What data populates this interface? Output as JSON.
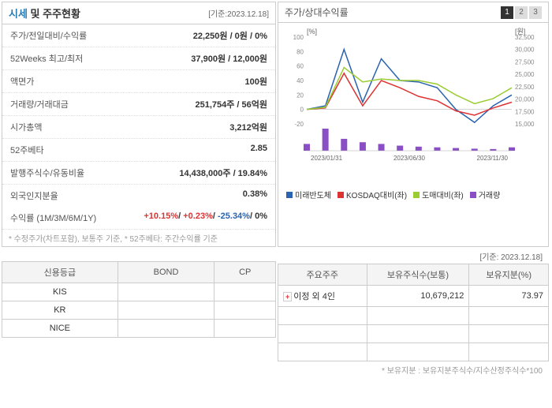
{
  "header": {
    "title_accent": "시세",
    "title_rest": " 및 주주현황",
    "date": "[기준:2023.12.18]"
  },
  "stock_info": {
    "rows": [
      {
        "label": "주가/전일대비/수익률",
        "value": "22,250원 / 0원 / 0%",
        "value_classes": []
      },
      {
        "label": "52Weeks 최고/최저",
        "value": "37,900원 / 12,000원"
      },
      {
        "label": "액면가",
        "value": "100원"
      },
      {
        "label": "거래량/거래대금",
        "value": "251,754주 / 56억원"
      },
      {
        "label": "시가총액",
        "value": "3,212억원"
      },
      {
        "label": "52주베타",
        "value": "2.85"
      },
      {
        "label": "발행주식수/유동비율",
        "value": "14,438,000주 / 19.84%"
      },
      {
        "label": "외국인지분율",
        "value": "0.38%"
      }
    ],
    "returns_label": "수익률 (1M/3M/6M/1Y)",
    "returns_parts": [
      {
        "text": "+10.15%",
        "class": "red"
      },
      {
        "text": "+0.23%",
        "class": "red"
      },
      {
        "text": "-25.34%",
        "class": "blue"
      },
      {
        "text": "0%",
        "class": ""
      }
    ],
    "footnote": "* 수정주가(차트포함), 보통주 기준, * 52주베타: 주간수익률 기준"
  },
  "chart_panel": {
    "title": "주가/상대수익률",
    "tabs": [
      "1",
      "2",
      "3"
    ],
    "active_tab": 0,
    "y_left_label": "[%]",
    "y_right_label": "[원]",
    "y_left_ticks": [
      -20,
      0,
      20,
      40,
      60,
      80,
      100
    ],
    "y_right_ticks": [
      15000,
      17500,
      20000,
      22500,
      25000,
      27500,
      30000,
      32500
    ],
    "x_labels": [
      "2023/01/31",
      "2023/06/30",
      "2023/11/30"
    ],
    "series": [
      {
        "name": "미래반도체",
        "color": "#2a63b0",
        "values": [
          0,
          5,
          83,
          10,
          70,
          40,
          38,
          30,
          0,
          -18,
          5,
          20
        ]
      },
      {
        "name": "KOSDAQ대비(좌)",
        "color": "#d33",
        "values": [
          0,
          2,
          50,
          5,
          40,
          30,
          18,
          12,
          -2,
          -8,
          2,
          10
        ]
      },
      {
        "name": "도매대비(좌)",
        "color": "#9acd32",
        "values": [
          0,
          3,
          58,
          38,
          42,
          40,
          40,
          35,
          20,
          8,
          15,
          30
        ]
      }
    ],
    "volume": {
      "name": "거래량",
      "color": "#8a4fc4",
      "values": [
        20,
        65,
        35,
        25,
        20,
        15,
        12,
        10,
        8,
        6,
        5,
        10
      ]
    }
  },
  "credit_table": {
    "headers": [
      "신용등급",
      "BOND",
      "CP"
    ],
    "rows": [
      [
        "KIS",
        "",
        ""
      ],
      [
        "KR",
        "",
        ""
      ],
      [
        "NICE",
        "",
        ""
      ]
    ]
  },
  "shareholder_table": {
    "date": "[기준: 2023.12.18]",
    "headers": [
      "주요주주",
      "보유주식수(보통)",
      "보유지분(%)"
    ],
    "rows": [
      {
        "expandable": true,
        "name": "이정 외 4인",
        "shares": "10,679,212",
        "pct": "73.97"
      },
      {
        "expandable": false,
        "name": "",
        "shares": "",
        "pct": ""
      },
      {
        "expandable": false,
        "name": "",
        "shares": "",
        "pct": ""
      },
      {
        "expandable": false,
        "name": "",
        "shares": "",
        "pct": ""
      }
    ],
    "footnote": "* 보유지분 : 보유지분주식수/지수산정주식수*100"
  }
}
